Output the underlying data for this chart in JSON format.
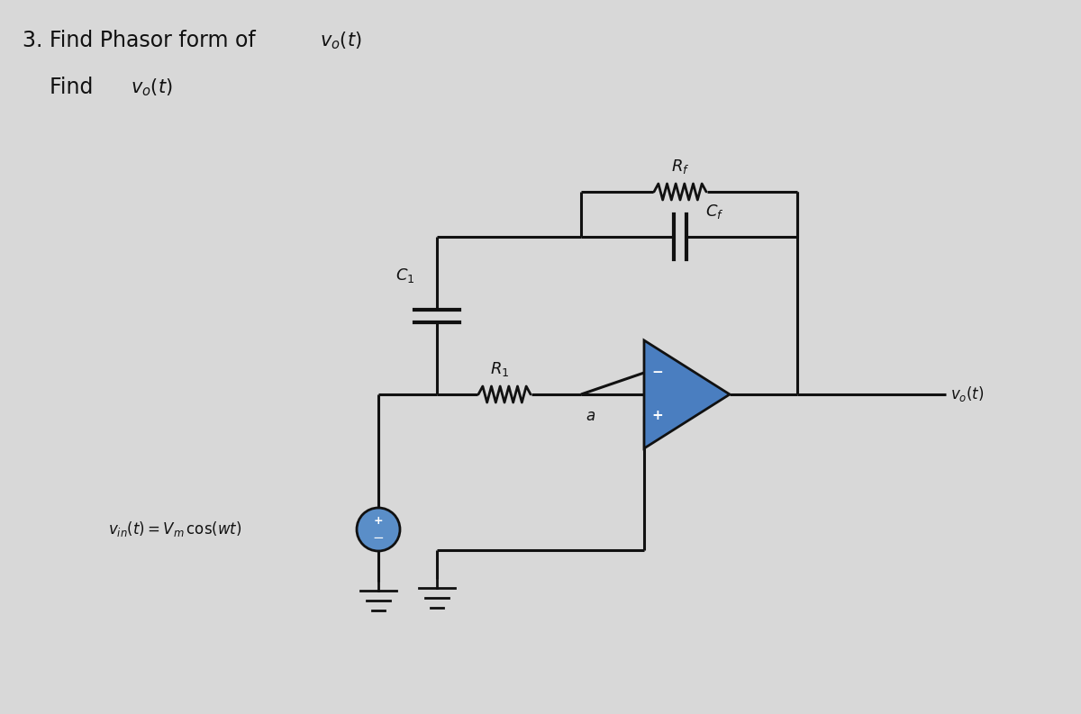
{
  "bg_color": "#d8d8d8",
  "line_color": "#111111",
  "opamp_color": "#4a7ec0",
  "source_color": "#5a8ec8",
  "text_color": "#111111",
  "title1_main": "3. Find Phasor form of ",
  "title1_sub": "$v_o(t)$",
  "title2_main": "   Find  ",
  "title2_sub": "$v_o(t)$",
  "label_vin": "$v_{in}(t) = V_m\\,\\cos(wt)$",
  "label_C1": "$C_1$",
  "label_R1": "$R_1$",
  "label_Cf": "$C_f$",
  "label_Rf": "$R_f$",
  "label_a": "$a$",
  "label_vo": "$v_o(t)$"
}
